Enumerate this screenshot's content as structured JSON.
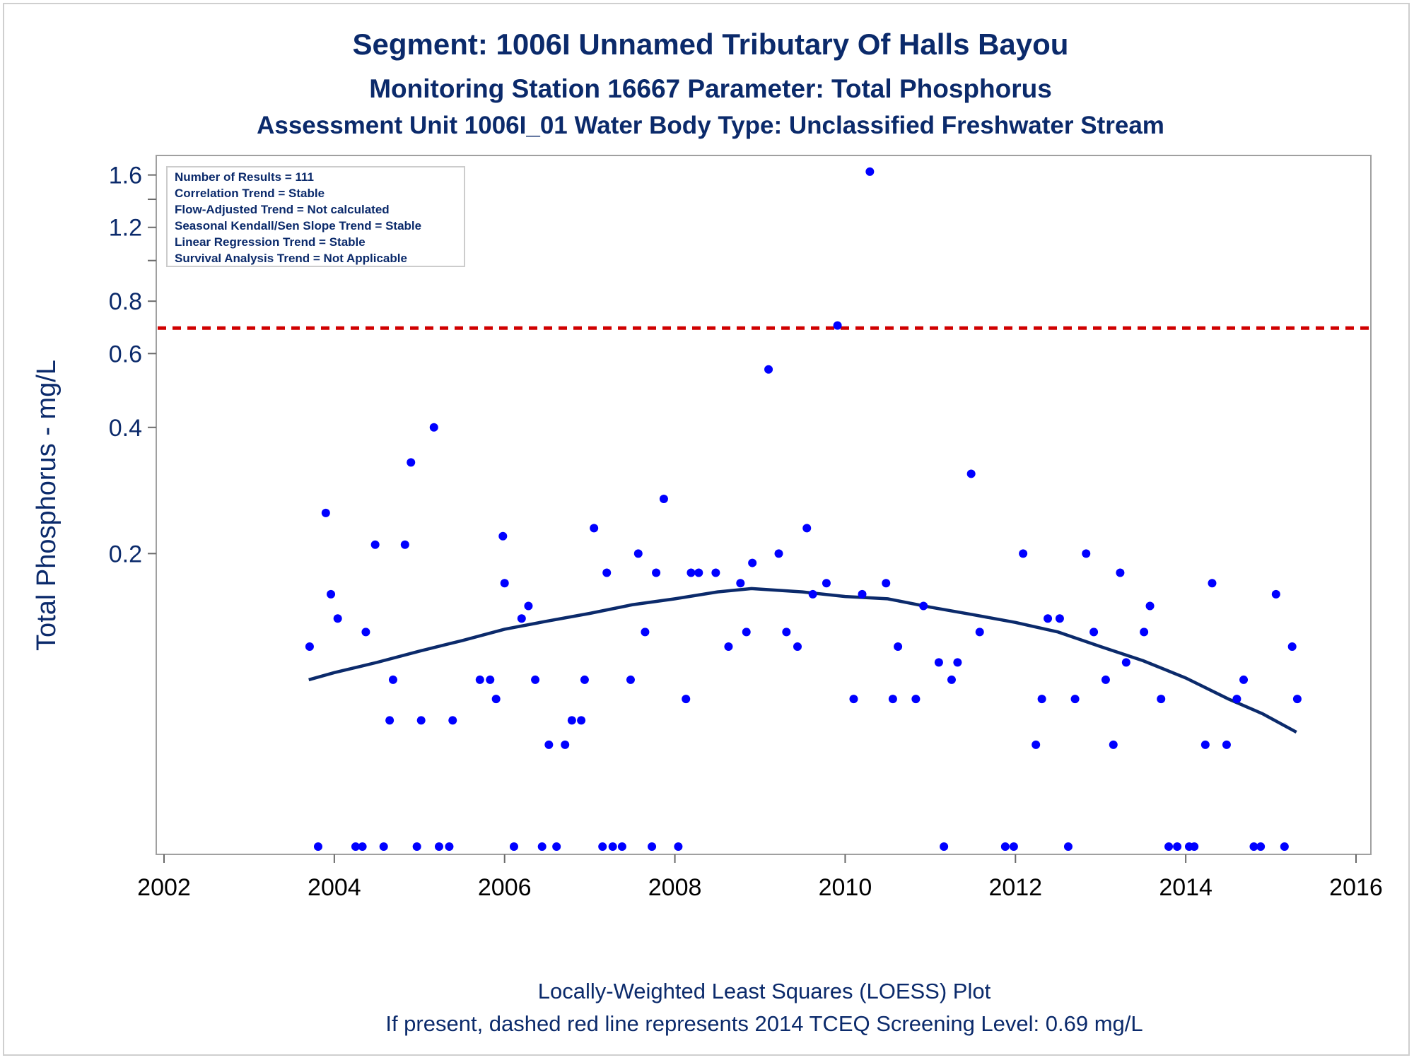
{
  "chart_data": {
    "type": "scatter",
    "title": "Segment: 1006I  Unnamed Tributary Of Halls Bayou",
    "subtitle": "Monitoring Station 16667 Parameter: Total Phosphorus",
    "subtitle2": "Assessment Unit 1006I_01   Water Body Type: Unclassified Freshwater Stream",
    "xlabel": "",
    "ylabel": "Total Phosphorus - mg/L",
    "footnote1": "Locally-Weighted Least Squares (LOESS) Plot",
    "footnote2": "If present, dashed red line represents 2014 TCEQ Screening Level: 0.69 mg/L",
    "x_scale": "date (years)",
    "y_scale": "log",
    "xlim": [
      2002,
      2016
    ],
    "ylim": [
      0.04,
      1.7
    ],
    "x_ticks": [
      "2002",
      "2004",
      "2006",
      "2008",
      "2010",
      "2012",
      "2014",
      "2016"
    ],
    "y_ticks": [
      "1.6",
      "1.2",
      "0.8",
      "0.6",
      "0.4",
      "0.2"
    ],
    "y_tick_values": [
      1.6,
      1.2,
      0.8,
      0.6,
      0.4,
      0.2
    ],
    "grid": false,
    "legend": "none",
    "info_box": {
      "position": "top-left",
      "lines": [
        "Number of Results = 111",
        "Correlation Trend = Stable",
        "Flow-Adjusted Trend = Not calculated",
        "Seasonal Kendall/Sen Slope Trend = Stable",
        "Linear Regression Trend = Stable",
        "Survival Analysis Trend = Not Applicable"
      ]
    },
    "reference_line": {
      "y": 0.69,
      "style": "dashed",
      "color": "#d00000"
    },
    "colors": {
      "points": "#0000ff",
      "loess": "#0b2a6b",
      "text": "#0b2a6b",
      "axis": "#a0a0a0"
    },
    "series": [
      {
        "kind": "points",
        "points": [
          [
            2003.71,
            0.12
          ],
          [
            2003.81,
            0.04
          ],
          [
            2003.9,
            0.25
          ],
          [
            2003.96,
            0.16
          ],
          [
            2004.04,
            0.14
          ],
          [
            2004.25,
            0.04
          ],
          [
            2004.33,
            0.04
          ],
          [
            2004.37,
            0.13
          ],
          [
            2004.48,
            0.21
          ],
          [
            2004.58,
            0.04
          ],
          [
            2004.65,
            0.08
          ],
          [
            2004.69,
            0.1
          ],
          [
            2004.83,
            0.21
          ],
          [
            2004.9,
            0.33
          ],
          [
            2004.97,
            0.04
          ],
          [
            2005.02,
            0.08
          ],
          [
            2005.17,
            0.4
          ],
          [
            2005.23,
            0.04
          ],
          [
            2005.35,
            0.04
          ],
          [
            2005.39,
            0.08
          ],
          [
            2005.71,
            0.1
          ],
          [
            2005.83,
            0.1
          ],
          [
            2005.9,
            0.09
          ],
          [
            2005.98,
            0.22
          ],
          [
            2006.0,
            0.17
          ],
          [
            2006.11,
            0.04
          ],
          [
            2006.2,
            0.14
          ],
          [
            2006.28,
            0.15
          ],
          [
            2006.36,
            0.1
          ],
          [
            2006.44,
            0.04
          ],
          [
            2006.52,
            0.07
          ],
          [
            2006.61,
            0.04
          ],
          [
            2006.71,
            0.07
          ],
          [
            2006.79,
            0.08
          ],
          [
            2006.9,
            0.08
          ],
          [
            2006.94,
            0.1
          ],
          [
            2007.05,
            0.23
          ],
          [
            2007.15,
            0.04
          ],
          [
            2007.2,
            0.18
          ],
          [
            2007.27,
            0.04
          ],
          [
            2007.38,
            0.04
          ],
          [
            2007.48,
            0.1
          ],
          [
            2007.57,
            0.2
          ],
          [
            2007.65,
            0.13
          ],
          [
            2007.73,
            0.04
          ],
          [
            2007.78,
            0.18
          ],
          [
            2007.87,
            0.27
          ],
          [
            2008.04,
            0.04
          ],
          [
            2008.13,
            0.09
          ],
          [
            2008.19,
            0.18
          ],
          [
            2008.28,
            0.18
          ],
          [
            2008.48,
            0.18
          ],
          [
            2008.63,
            0.12
          ],
          [
            2008.77,
            0.17
          ],
          [
            2008.84,
            0.13
          ],
          [
            2008.91,
            0.19
          ],
          [
            2009.1,
            0.55
          ],
          [
            2009.22,
            0.2
          ],
          [
            2009.31,
            0.13
          ],
          [
            2009.44,
            0.12
          ],
          [
            2009.55,
            0.23
          ],
          [
            2009.62,
            0.16
          ],
          [
            2009.78,
            0.17
          ],
          [
            2009.91,
            0.7
          ],
          [
            2010.1,
            0.09
          ],
          [
            2010.2,
            0.16
          ],
          [
            2010.29,
            1.63
          ],
          [
            2010.48,
            0.17
          ],
          [
            2010.56,
            0.09
          ],
          [
            2010.62,
            0.12
          ],
          [
            2010.83,
            0.09
          ],
          [
            2010.92,
            0.15
          ],
          [
            2011.1,
            0.11
          ],
          [
            2011.16,
            0.04
          ],
          [
            2011.25,
            0.1
          ],
          [
            2011.32,
            0.11
          ],
          [
            2011.48,
            0.31
          ],
          [
            2011.58,
            0.13
          ],
          [
            2011.88,
            0.04
          ],
          [
            2011.98,
            0.04
          ],
          [
            2012.09,
            0.2
          ],
          [
            2012.24,
            0.07
          ],
          [
            2012.31,
            0.09
          ],
          [
            2012.38,
            0.14
          ],
          [
            2012.52,
            0.14
          ],
          [
            2012.62,
            0.04
          ],
          [
            2012.7,
            0.09
          ],
          [
            2012.83,
            0.2
          ],
          [
            2012.92,
            0.13
          ],
          [
            2013.06,
            0.1
          ],
          [
            2013.15,
            0.07
          ],
          [
            2013.23,
            0.18
          ],
          [
            2013.3,
            0.11
          ],
          [
            2013.51,
            0.13
          ],
          [
            2013.58,
            0.15
          ],
          [
            2013.71,
            0.09
          ],
          [
            2013.8,
            0.04
          ],
          [
            2013.9,
            0.04
          ],
          [
            2014.04,
            0.04
          ],
          [
            2014.1,
            0.04
          ],
          [
            2014.23,
            0.07
          ],
          [
            2014.31,
            0.17
          ],
          [
            2014.48,
            0.07
          ],
          [
            2014.6,
            0.09
          ],
          [
            2014.68,
            0.1
          ],
          [
            2014.8,
            0.04
          ],
          [
            2014.88,
            0.04
          ],
          [
            2015.06,
            0.16
          ],
          [
            2015.16,
            0.04
          ],
          [
            2015.25,
            0.12
          ],
          [
            2015.31,
            0.09
          ]
        ]
      },
      {
        "kind": "loess",
        "points": [
          [
            2003.7,
            0.1
          ],
          [
            2004.0,
            0.104
          ],
          [
            2004.5,
            0.11
          ],
          [
            2005.0,
            0.117
          ],
          [
            2005.5,
            0.124
          ],
          [
            2006.0,
            0.132
          ],
          [
            2006.5,
            0.138
          ],
          [
            2007.0,
            0.144
          ],
          [
            2007.5,
            0.151
          ],
          [
            2008.0,
            0.156
          ],
          [
            2008.5,
            0.162
          ],
          [
            2008.9,
            0.165
          ],
          [
            2009.5,
            0.162
          ],
          [
            2010.0,
            0.158
          ],
          [
            2010.5,
            0.156
          ],
          [
            2011.0,
            0.149
          ],
          [
            2011.5,
            0.143
          ],
          [
            2012.0,
            0.137
          ],
          [
            2012.5,
            0.13
          ],
          [
            2013.0,
            0.12
          ],
          [
            2013.5,
            0.111
          ],
          [
            2014.0,
            0.101
          ],
          [
            2014.5,
            0.09
          ],
          [
            2014.9,
            0.083
          ],
          [
            2015.3,
            0.075
          ]
        ]
      }
    ]
  }
}
